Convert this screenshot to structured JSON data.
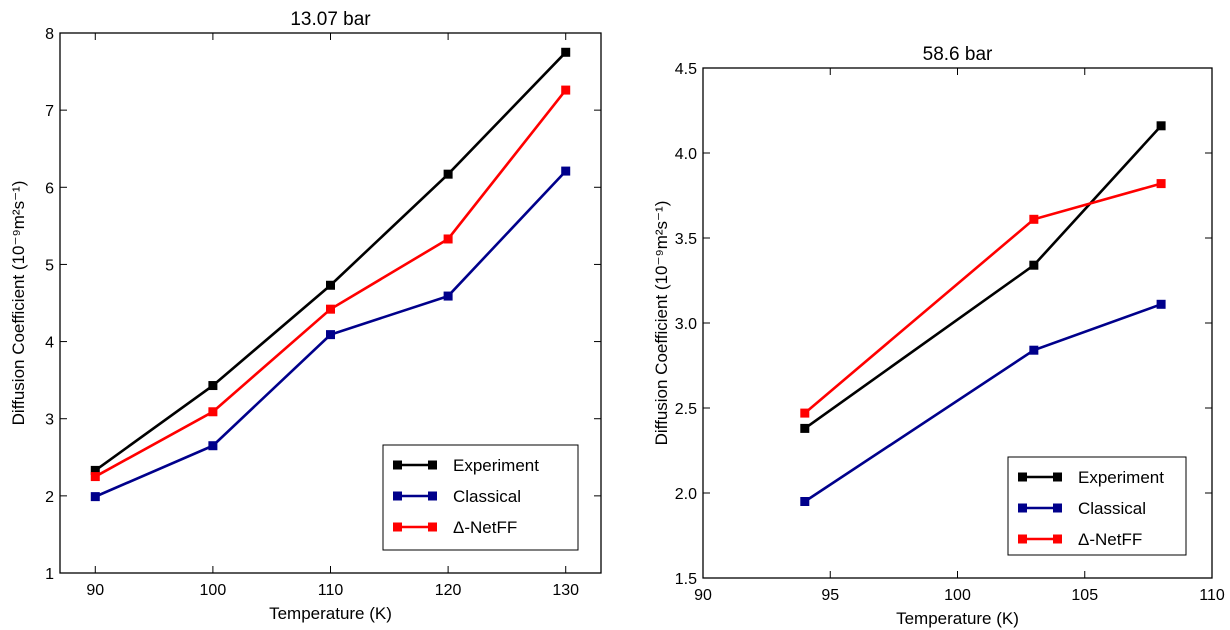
{
  "chart_data": [
    {
      "type": "line",
      "title": "13.07 bar",
      "xlabel": "Temperature (K)",
      "ylabel": "Diffusion Coefficient (10⁻⁹m²s⁻¹)",
      "xlim": [
        87,
        133
      ],
      "ylim": [
        1,
        8
      ],
      "xticks": [
        90,
        100,
        110,
        120,
        130
      ],
      "yticks": [
        1,
        2,
        3,
        4,
        5,
        6,
        7,
        8
      ],
      "xtick_labels": [
        "90",
        "100",
        "110",
        "120",
        "130"
      ],
      "ytick_labels": [
        "1",
        "2",
        "3",
        "4",
        "5",
        "6",
        "7",
        "8"
      ],
      "legend_position": "lower-right",
      "x": [
        90,
        100,
        110,
        120,
        130
      ],
      "series": [
        {
          "name": "Experiment",
          "color": "#000000",
          "values": [
            2.33,
            3.43,
            4.73,
            6.17,
            7.75
          ]
        },
        {
          "name": "Classical",
          "color": "#00008b",
          "values": [
            1.99,
            2.65,
            4.09,
            4.59,
            6.21
          ]
        },
        {
          "name": "Δ-NetFF",
          "color": "#ff0000",
          "values": [
            2.25,
            3.09,
            4.42,
            5.33,
            7.26
          ]
        }
      ]
    },
    {
      "type": "line",
      "title": "58.6 bar",
      "xlabel": "Temperature (K)",
      "ylabel": "Diffusion Coefficient (10⁻⁹m²s⁻¹)",
      "xlim": [
        90,
        110
      ],
      "ylim": [
        1.5,
        4.5
      ],
      "xticks": [
        90,
        95,
        100,
        105,
        110
      ],
      "yticks": [
        1.5,
        2.0,
        2.5,
        3.0,
        3.5,
        4.0,
        4.5
      ],
      "xtick_labels": [
        "90",
        "95",
        "100",
        "105",
        "110"
      ],
      "ytick_labels": [
        "1.5",
        "2.0",
        "2.5",
        "3.0",
        "3.5",
        "4.0",
        "4.5"
      ],
      "legend_position": "lower-right",
      "x": [
        94,
        103,
        108
      ],
      "series": [
        {
          "name": "Experiment",
          "color": "#000000",
          "values": [
            2.38,
            3.34,
            4.16
          ]
        },
        {
          "name": "Classical",
          "color": "#00008b",
          "values": [
            1.95,
            2.84,
            3.11
          ]
        },
        {
          "name": "Δ-NetFF",
          "color": "#ff0000",
          "values": [
            2.47,
            3.61,
            3.82
          ]
        }
      ]
    }
  ]
}
